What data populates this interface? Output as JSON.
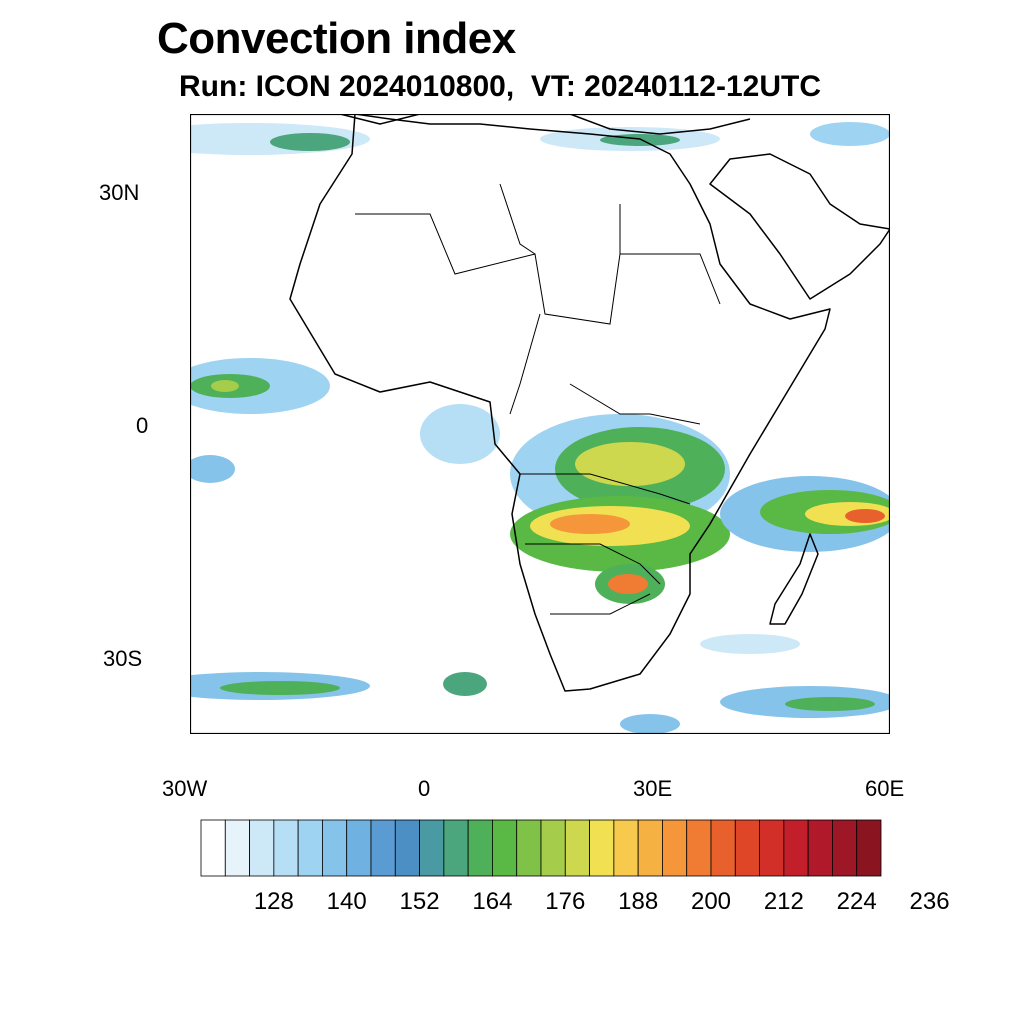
{
  "title": "Convection index",
  "subtitle": "Run: ICON 2024010800,  VT: 20240112-12UTC",
  "axes": {
    "x_ticks": [
      "30W",
      "0",
      "30E",
      "60E"
    ],
    "y_ticks": [
      "30N",
      "0",
      "30S"
    ]
  },
  "colorbar": {
    "colors": [
      "#ffffff",
      "#e6f3fb",
      "#cde8f7",
      "#b6def5",
      "#9fd3f2",
      "#86c3ea",
      "#6fb2e1",
      "#5a9bd3",
      "#4b8fc4",
      "#4a9aa3",
      "#4ba57d",
      "#4fb05a",
      "#5ab845",
      "#7fc247",
      "#a5cc4a",
      "#cdd84f",
      "#f0e052",
      "#f7c94c",
      "#f6b143",
      "#f5963b",
      "#f07c33",
      "#e8602c",
      "#df4527",
      "#d22f28",
      "#c21f2a",
      "#b0192a",
      "#9e1727",
      "#8b1421"
    ],
    "labels": [
      "128",
      "140",
      "152",
      "164",
      "176",
      "188",
      "200",
      "212",
      "224",
      "236"
    ]
  }
}
